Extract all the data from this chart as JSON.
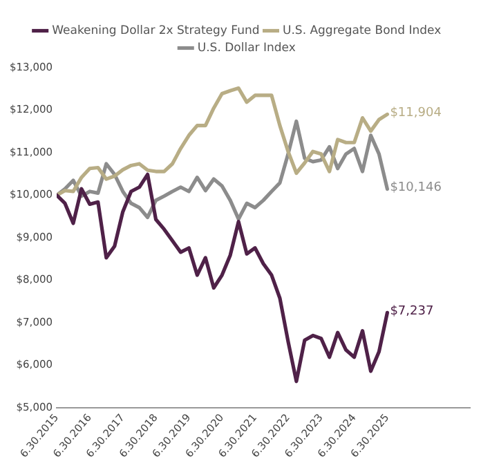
{
  "chart_data": {
    "type": "line",
    "categories": [
      "6.30.2015",
      null,
      null,
      null,
      "6.30.2016",
      null,
      null,
      null,
      "6.30.2017",
      null,
      null,
      null,
      "6.30.2018",
      null,
      null,
      null,
      "6.30.2019",
      null,
      null,
      null,
      "6.30.2020",
      null,
      null,
      null,
      "6.30.2021",
      null,
      null,
      null,
      "6.30.2022",
      null,
      null,
      null,
      "6.30.2023",
      null,
      null,
      null,
      "6.30.2024",
      null,
      null,
      null,
      "6.30.2025"
    ],
    "series": [
      {
        "name": "Weakening Dollar 2x Strategy Fund",
        "color": "#4f2148",
        "values": [
          10000,
          9810,
          9340,
          10150,
          9790,
          9840,
          8530,
          8800,
          9610,
          10090,
          10190,
          10490,
          9430,
          9200,
          8930,
          8660,
          8760,
          8120,
          8530,
          7820,
          8120,
          8590,
          9380,
          8620,
          8760,
          8390,
          8120,
          7580,
          6560,
          5620,
          6590,
          6700,
          6630,
          6190,
          6770,
          6360,
          6190,
          6810,
          5860,
          6320,
          7237
        ]
      },
      {
        "name": "U.S. Aggregate Bond Index",
        "color": "#b8ad85",
        "values": [
          10000,
          10110,
          10090,
          10420,
          10630,
          10650,
          10380,
          10450,
          10600,
          10700,
          10740,
          10590,
          10560,
          10560,
          10740,
          11100,
          11410,
          11640,
          11640,
          12050,
          12390,
          12460,
          12520,
          12190,
          12350,
          12350,
          12350,
          11640,
          11030,
          10520,
          10760,
          11030,
          10970,
          10560,
          11310,
          11240,
          11240,
          11820,
          11510,
          11780,
          11904
        ]
      },
      {
        "name": "U.S. Dollar Index",
        "color": "#8c8c8c",
        "values": [
          10000,
          10150,
          10350,
          9980,
          10090,
          10050,
          10740,
          10490,
          10090,
          9810,
          9710,
          9480,
          9880,
          9980,
          10090,
          10190,
          10090,
          10420,
          10110,
          10380,
          10220,
          9880,
          9440,
          9810,
          9710,
          9880,
          10090,
          10290,
          10970,
          11740,
          10870,
          10790,
          10830,
          11140,
          10630,
          10970,
          11100,
          10560,
          11410,
          10970,
          10146
        ]
      }
    ],
    "ylim": [
      5000,
      13000
    ],
    "yticks": [
      {
        "value": 5000,
        "label": "$5,000"
      },
      {
        "value": 6000,
        "label": "$6,000"
      },
      {
        "value": 7000,
        "label": "$7,000"
      },
      {
        "value": 8000,
        "label": "$8,000"
      },
      {
        "value": 9000,
        "label": "$9,000"
      },
      {
        "value": 10000,
        "label": "$10,000"
      },
      {
        "value": 11000,
        "label": "$11,000"
      },
      {
        "value": 12000,
        "label": "$12,000"
      },
      {
        "value": 13000,
        "label": "$13,000"
      }
    ],
    "annotations": [
      {
        "text": "$11,904",
        "x": "6.30.2025",
        "y": 11904
      },
      {
        "text": "$10,146",
        "x": "6.30.2025",
        "y": 10146
      },
      {
        "text": "$7,237",
        "x": "6.30.2025",
        "y": 7237
      }
    ],
    "grid": false,
    "legend": "top",
    "marker": "none",
    "line_style": "solid"
  }
}
